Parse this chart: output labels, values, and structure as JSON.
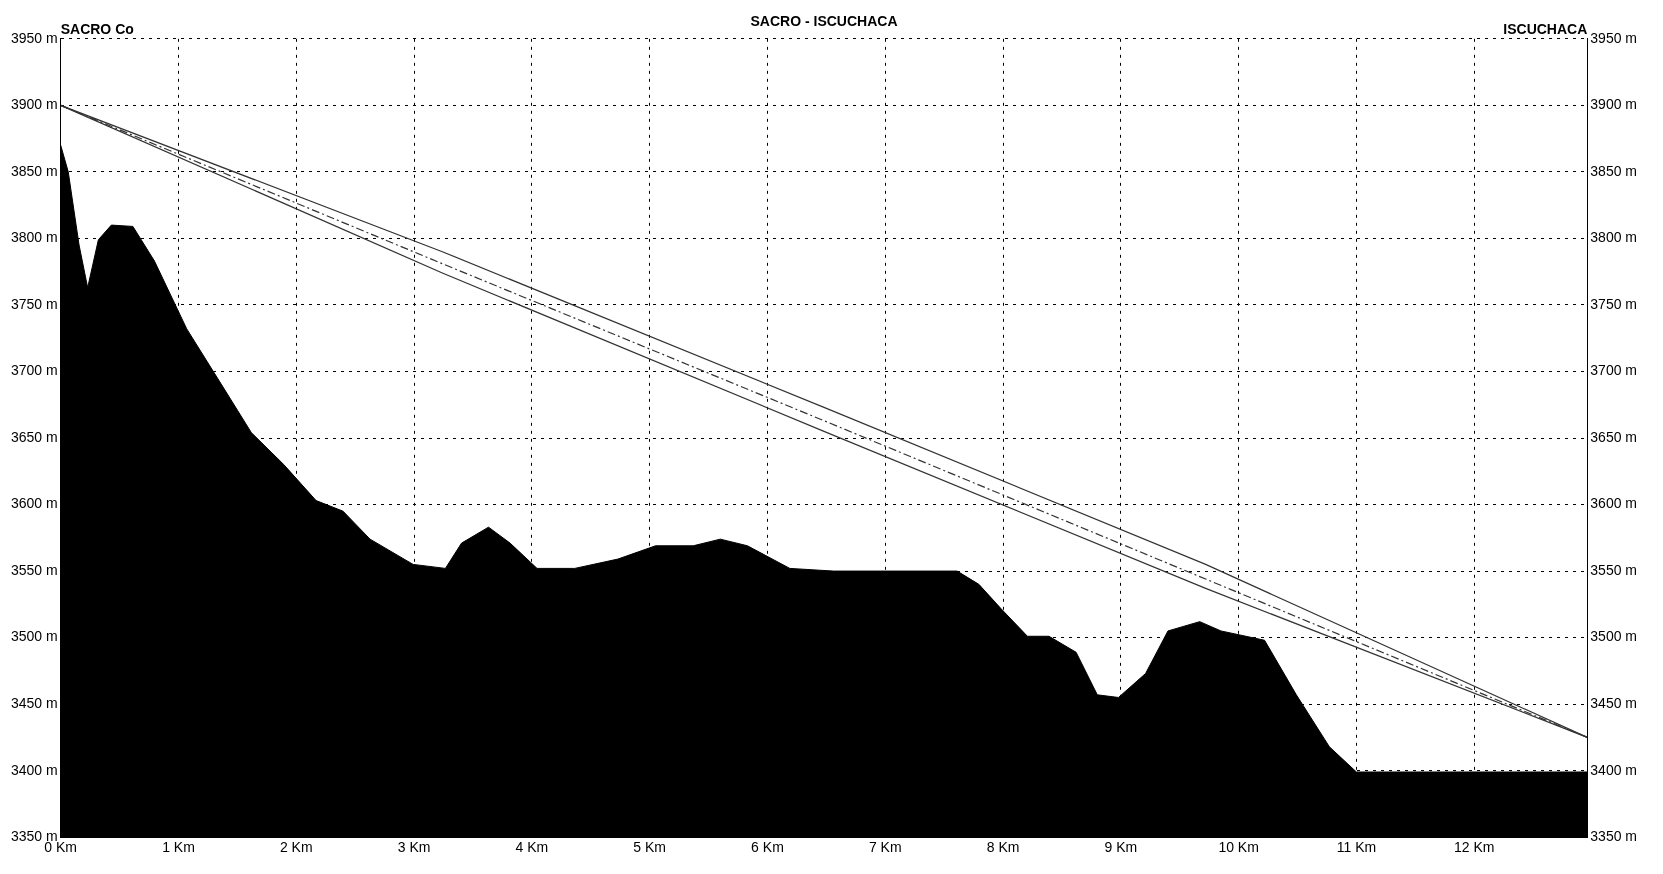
{
  "chart_data": {
    "type": "area",
    "title": "SACRO - ISCUCHACA",
    "xlim": [
      0,
      12.96
    ],
    "xticks": [
      {
        "value": 0,
        "label": "0 Km"
      },
      {
        "value": 1,
        "label": "1 Km"
      },
      {
        "value": 2,
        "label": "2 Km"
      },
      {
        "value": 3,
        "label": "3 Km"
      },
      {
        "value": 4,
        "label": "4 Km"
      },
      {
        "value": 5,
        "label": "5 Km"
      },
      {
        "value": 6,
        "label": "6 Km"
      },
      {
        "value": 7,
        "label": "7 Km"
      },
      {
        "value": 8,
        "label": "8 Km"
      },
      {
        "value": 9,
        "label": "9 Km"
      },
      {
        "value": 10,
        "label": "10 Km"
      },
      {
        "value": 11,
        "label": "11 Km"
      },
      {
        "value": 12,
        "label": "12 Km"
      }
    ],
    "ylim": [
      3350,
      3950
    ],
    "yticks": [
      {
        "value": 3350,
        "label": "3350 m"
      },
      {
        "value": 3400,
        "label": "3400 m"
      },
      {
        "value": 3450,
        "label": "3450 m"
      },
      {
        "value": 3500,
        "label": "3500 m"
      },
      {
        "value": 3550,
        "label": "3550 m"
      },
      {
        "value": 3600,
        "label": "3600 m"
      },
      {
        "value": 3650,
        "label": "3650 m"
      },
      {
        "value": 3700,
        "label": "3700 m"
      },
      {
        "value": 3750,
        "label": "3750 m"
      },
      {
        "value": 3800,
        "label": "3800 m"
      },
      {
        "value": 3850,
        "label": "3850 m"
      },
      {
        "value": 3900,
        "label": "3900 m"
      },
      {
        "value": 3950,
        "label": "3950 m"
      }
    ],
    "y2lim": [
      3350,
      3950
    ],
    "y2ticks": [
      {
        "value": 3350,
        "label": "3350 m"
      },
      {
        "value": 3400,
        "label": "3400 m"
      },
      {
        "value": 3450,
        "label": "3450 m"
      },
      {
        "value": 3500,
        "label": "3500 m"
      },
      {
        "value": 3550,
        "label": "3550 m"
      },
      {
        "value": 3600,
        "label": "3600 m"
      },
      {
        "value": 3650,
        "label": "3650 m"
      },
      {
        "value": 3700,
        "label": "3700 m"
      },
      {
        "value": 3750,
        "label": "3750 m"
      },
      {
        "value": 3800,
        "label": "3800 m"
      },
      {
        "value": 3850,
        "label": "3850 m"
      },
      {
        "value": 3900,
        "label": "3900 m"
      },
      {
        "value": 3950,
        "label": "3950 m"
      }
    ],
    "grid": true,
    "legend": false,
    "annotations": [
      "SACRO Co",
      "ISCUCHACA"
    ],
    "series": [
      {
        "color": "#000000",
        "x": [
          0,
          0.064,
          0.156,
          0.229,
          0.32,
          0.43,
          0.613,
          0.796,
          1.07,
          1.345,
          1.619,
          1.894,
          2.168,
          2.397,
          2.626,
          2.992,
          3.266,
          3.403,
          3.632,
          3.815,
          4.044,
          4.364,
          4.73,
          5.05,
          5.37,
          5.6,
          5.83,
          6.19,
          6.56,
          7.61,
          7.795,
          7.98,
          8.207,
          8.39,
          8.62,
          8.8,
          8.98,
          9.21,
          9.4,
          9.67,
          9.85,
          10.22,
          10.49,
          10.77,
          11.0,
          12.96
        ],
        "values": [
          3870,
          3850,
          3795,
          3763,
          3799,
          3810,
          3809,
          3783,
          3732,
          3693,
          3654,
          3630,
          3603,
          3595,
          3574,
          3555,
          3552,
          3571,
          3583,
          3571,
          3552,
          3552,
          3559,
          3569,
          3569,
          3574,
          3569,
          3552,
          3550,
          3550,
          3540,
          3522,
          3501,
          3501,
          3489,
          3457,
          3455,
          3473,
          3505,
          3512,
          3505,
          3498,
          3457,
          3418,
          3399,
          3399
        ]
      },
      {
        "type": "line",
        "color": "#333333",
        "x": [
          0,
          3.24,
          6.48,
          9.72,
          12.96
        ],
        "values": [
          3900,
          3790,
          3673,
          3555,
          3425
        ]
      },
      {
        "type": "line",
        "color": "#333333",
        "line_style": "dashed",
        "x": [
          0,
          3.24,
          6.48,
          9.72,
          12.96
        ],
        "values": [
          3900,
          3781,
          3663,
          3544,
          3425
        ]
      },
      {
        "type": "line",
        "color": "#333333",
        "x": [
          0,
          3.24,
          6.48,
          9.72,
          12.96
        ],
        "values": [
          3900,
          3774,
          3655,
          3537,
          3425
        ]
      }
    ]
  }
}
